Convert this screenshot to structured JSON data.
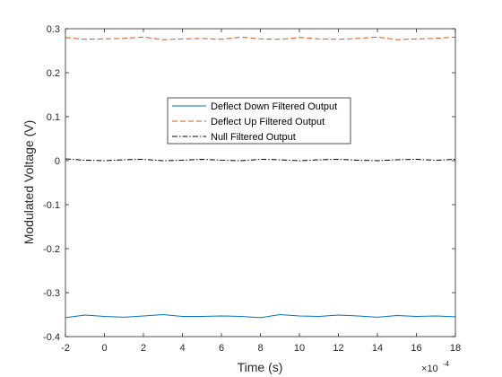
{
  "chart_data": {
    "type": "line",
    "xlabel": "Time (s)",
    "ylabel": "Modulated Voltage (V)",
    "x_exponent_label": "10",
    "x_exponent_power": "-4",
    "x_exponent_prefix": "×",
    "xlim": [
      -2,
      18
    ],
    "ylim": [
      -0.4,
      0.3
    ],
    "x_ticks": [
      "-2",
      "0",
      "2",
      "4",
      "6",
      "8",
      "10",
      "12",
      "14",
      "16",
      "18"
    ],
    "y_ticks": [
      "-0.4",
      "-0.3",
      "-0.2",
      "-0.1",
      "0",
      "0.1",
      "0.2",
      "0.3"
    ],
    "grid": false,
    "legend_position": "center-upper",
    "series": [
      {
        "name": "Deflect Down Filtered Output",
        "color": "#0072BD",
        "style": "solid",
        "x": [
          -2,
          -1,
          0,
          1,
          2,
          3,
          4,
          5,
          6,
          7,
          8,
          9,
          10,
          11,
          12,
          13,
          14,
          15,
          16,
          17,
          18
        ],
        "y": [
          -0.357,
          -0.351,
          -0.354,
          -0.356,
          -0.353,
          -0.35,
          -0.354,
          -0.354,
          -0.353,
          -0.354,
          -0.357,
          -0.35,
          -0.353,
          -0.354,
          -0.351,
          -0.353,
          -0.356,
          -0.352,
          -0.354,
          -0.353,
          -0.355
        ]
      },
      {
        "name": "Deflect Up Filtered Output",
        "color": "#D95319",
        "style": "dashed",
        "x": [
          -2,
          -1,
          0,
          1,
          2,
          3,
          4,
          5,
          6,
          7,
          8,
          9,
          10,
          11,
          12,
          13,
          14,
          15,
          16,
          17,
          18
        ],
        "y": [
          0.28,
          0.276,
          0.277,
          0.278,
          0.281,
          0.275,
          0.277,
          0.278,
          0.276,
          0.281,
          0.277,
          0.276,
          0.28,
          0.277,
          0.276,
          0.278,
          0.281,
          0.275,
          0.277,
          0.278,
          0.281
        ]
      },
      {
        "name": "Null Filtered Output",
        "color": "#000000",
        "style": "dashdot",
        "x": [
          -2,
          -1,
          0,
          1,
          2,
          3,
          4,
          5,
          6,
          7,
          8,
          9,
          10,
          11,
          12,
          13,
          14,
          15,
          16,
          17,
          18
        ],
        "y": [
          0.004,
          0.001,
          0.0,
          0.002,
          0.003,
          0.0,
          0.001,
          0.003,
          0.001,
          0.0,
          0.003,
          0.002,
          0.0,
          0.002,
          0.003,
          0.001,
          0.0,
          0.002,
          0.003,
          0.001,
          0.003
        ]
      }
    ]
  }
}
